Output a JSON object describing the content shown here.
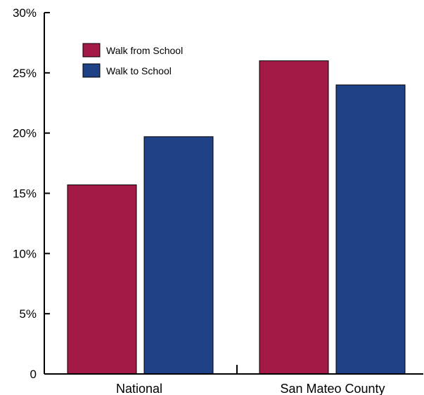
{
  "chart_data": {
    "type": "bar",
    "title": "",
    "xlabel": "",
    "ylabel": "",
    "categories": [
      "National",
      "San Mateo County"
    ],
    "series": [
      {
        "name": "Walk from School",
        "values": [
          15.7,
          26.0
        ],
        "color": "#a31a47"
      },
      {
        "name": "Walk to School",
        "values": [
          19.7,
          24.0
        ],
        "color": "#1f4286"
      }
    ],
    "ylim": [
      0,
      30
    ],
    "yticks": [
      0,
      5,
      10,
      15,
      20,
      25,
      30
    ],
    "ytick_labels": [
      "0",
      "5%",
      "10%",
      "15%",
      "20%",
      "25%",
      "30%"
    ],
    "grid": false,
    "legend_position": "top-left",
    "bar_edge_color": "#000000"
  }
}
